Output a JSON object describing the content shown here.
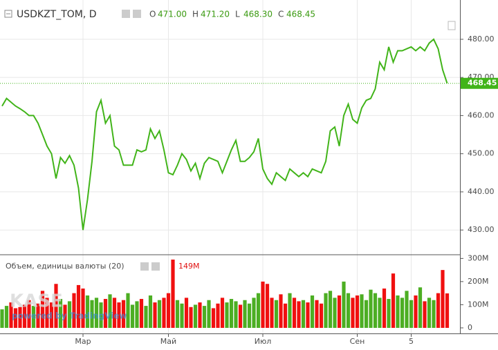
{
  "chart_data": [
    {
      "type": "line",
      "title": "USDKZT_TOM, D",
      "ohlc": [
        {
          "key": "O",
          "value": 471.0,
          "label": "471.00"
        },
        {
          "key": "H",
          "value": 471.2,
          "label": "471.20"
        },
        {
          "key": "L",
          "value": 468.3,
          "label": "468.30"
        },
        {
          "key": "C",
          "value": 468.45,
          "label": "468.45"
        }
      ],
      "series": [
        {
          "name": "USDKZT_TOM",
          "color": "#41b419",
          "values": [
            462.5,
            464.5,
            463.5,
            462.5,
            461.8,
            461,
            460,
            460,
            458,
            455,
            452,
            450,
            443.5,
            449,
            447.5,
            449.5,
            447,
            441,
            430,
            438,
            448,
            461,
            464,
            458,
            460,
            452,
            451,
            447,
            447,
            447,
            451,
            450.5,
            451,
            456.5,
            454,
            456,
            451,
            445,
            444.5,
            447,
            450,
            448.5,
            445.5,
            447.5,
            443.5,
            447.5,
            449,
            448.5,
            448,
            445,
            448,
            451,
            453.5,
            448,
            448,
            449,
            450.5,
            454,
            446,
            443.5,
            442,
            445,
            444,
            443,
            446,
            445,
            444,
            445,
            444,
            446,
            445.5,
            445,
            448,
            456,
            457,
            452,
            460,
            463,
            459,
            458,
            462,
            464,
            464.5,
            467,
            474,
            472,
            478,
            474,
            477,
            477,
            477.5,
            478,
            477,
            478,
            477,
            479,
            480,
            477.5,
            472,
            468.45
          ]
        }
      ],
      "ylim": [
        423.7,
        490.3
      ],
      "yticks": [
        {
          "value": 430,
          "label": "430.00"
        },
        {
          "value": 440,
          "label": "440.00"
        },
        {
          "value": 450,
          "label": "450.00"
        },
        {
          "value": 460,
          "label": "460.00"
        },
        {
          "value": 470,
          "label": "470.00"
        },
        {
          "value": 480,
          "label": "480.00"
        }
      ],
      "xticks": [
        {
          "value": 18,
          "label": "Мар"
        },
        {
          "value": 37,
          "label": "Май"
        },
        {
          "value": 58,
          "label": "Июл"
        },
        {
          "value": 79,
          "label": "Сен"
        },
        {
          "value": 91,
          "label": "5"
        }
      ],
      "grid": true,
      "watermark": [
        "KASE",
        "powered by TradingView"
      ]
    },
    {
      "type": "bar",
      "title": "Объем, единицы валюты (20)",
      "current": {
        "value": 149,
        "label": "149M"
      },
      "up_color": "#4cae23",
      "down_color": "#f01010",
      "values": [
        80,
        95,
        110,
        85,
        90,
        100,
        120,
        95,
        105,
        160,
        130,
        110,
        190,
        125,
        100,
        115,
        150,
        185,
        170,
        140,
        120,
        130,
        110,
        125,
        145,
        130,
        110,
        120,
        150,
        100,
        115,
        125,
        95,
        140,
        110,
        120,
        130,
        150,
        295,
        120,
        105,
        130,
        90,
        100,
        110,
        95,
        120,
        85,
        105,
        130,
        110,
        125,
        115,
        100,
        120,
        105,
        130,
        150,
        200,
        190,
        130,
        120,
        145,
        105,
        150,
        130,
        115,
        120,
        110,
        140,
        120,
        105,
        150,
        160,
        130,
        140,
        200,
        150,
        130,
        140,
        145,
        120,
        165,
        150,
        130,
        170,
        125,
        235,
        140,
        130,
        160,
        120,
        140,
        175,
        115,
        130,
        120,
        150,
        250,
        149
      ],
      "ylim": [
        -24,
        313
      ],
      "yticks": [
        0,
        {
          "value": 100,
          "label": "100M"
        },
        {
          "value": 200,
          "label": "200M"
        },
        {
          "value": 300,
          "label": "300M"
        }
      ]
    }
  ]
}
